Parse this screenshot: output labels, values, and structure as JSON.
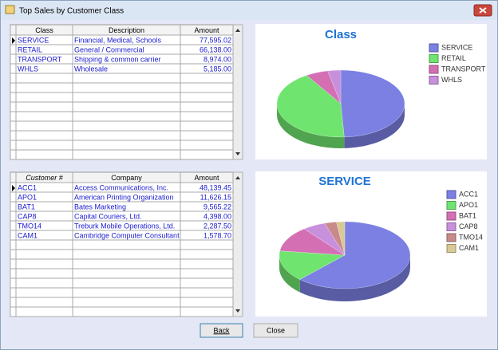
{
  "window": {
    "title": "Top Sales by Customer Class"
  },
  "class_table": {
    "headers": [
      "Class",
      "Description",
      "Amount"
    ],
    "descriptions": [
      "Financial, Medical, Schools",
      "General / Commercial",
      "Shipping & common carrier",
      "Wholesale"
    ]
  },
  "customer_table": {
    "headers": [
      "Customer #",
      "Company",
      "Amount"
    ],
    "companies": [
      "Access Communications, Inc.",
      "American Printing Organization",
      "Bates Marketing",
      "Capital Couriers, Ltd.",
      "Treburk Mobile Operations, Ltd.",
      "Cambridge Computer Consultant"
    ]
  },
  "chart_data": [
    {
      "type": "pie",
      "title": "Class",
      "categories": [
        "SERVICE",
        "RETAIL",
        "TRANSPORT",
        "WHLS"
      ],
      "values": [
        77595.02,
        66138.0,
        8974.0,
        5185.0
      ],
      "value_labels": [
        "77,595.02",
        "66,138.00",
        "8,974.00",
        "5,185.00"
      ],
      "colors": [
        "#7b80e2",
        "#6fe46f",
        "#d46fb4",
        "#c890dc"
      ]
    },
    {
      "type": "pie",
      "title": "SERVICE",
      "categories": [
        "ACC1",
        "APO1",
        "BAT1",
        "CAP8",
        "TMO14",
        "CAM1"
      ],
      "values": [
        48139.45,
        11626.15,
        9565.22,
        4398.0,
        2287.5,
        1578.7
      ],
      "value_labels": [
        "48,139.45",
        "11,626.15",
        "9,565.22",
        "4,398.00",
        "2,287.50",
        "1,578.70"
      ],
      "colors": [
        "#7b80e2",
        "#6fe46f",
        "#d46fb4",
        "#c890dc",
        "#c98a8a",
        "#d9c995"
      ]
    }
  ],
  "buttons": {
    "back": "Back",
    "close": "Close"
  }
}
